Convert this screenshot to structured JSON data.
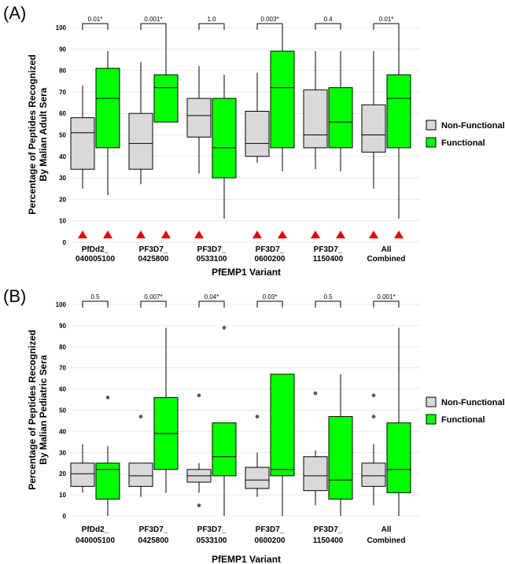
{
  "legend": {
    "items": [
      {
        "label": "Non-Functional",
        "color": "#d9d9d9"
      },
      {
        "label": "Functional",
        "color": "#00ff00"
      }
    ]
  },
  "chart_data": [
    {
      "type": "box",
      "panel_label": "(A)",
      "xlabel": "PfEMP1 Variant",
      "ylabel_lines": [
        "Percentage of Peptides Recognized",
        "By Malian Adult Sera"
      ],
      "ylim": [
        0,
        100
      ],
      "yticks": [
        0,
        10,
        20,
        30,
        40,
        50,
        60,
        70,
        80,
        90,
        100
      ],
      "categories": [
        [
          "PfDd2_",
          "040005100"
        ],
        [
          "PF3D7_",
          "0425800"
        ],
        [
          "PF3D7_",
          "0533100"
        ],
        [
          "PF3D7_",
          "0600200"
        ],
        [
          "PF3D7_",
          "1150400"
        ],
        [
          "All",
          "Combined"
        ]
      ],
      "p_values": [
        "0.01*",
        "0.001*",
        "1.0",
        "0.003*",
        "0.4",
        "0.01*"
      ],
      "series": [
        {
          "name": "Non-Functional",
          "boxes": [
            {
              "min": 25,
              "q1": 34,
              "median": 51,
              "q3": 58,
              "max": 73,
              "outliers": []
            },
            {
              "min": 27,
              "q1": 34,
              "median": 46,
              "q3": 60,
              "max": 84,
              "outliers": []
            },
            {
              "min": 32,
              "q1": 49,
              "median": 59,
              "q3": 67,
              "max": 82,
              "outliers": []
            },
            {
              "min": 37,
              "q1": 40,
              "median": 46,
              "q3": 61,
              "max": 79,
              "outliers": []
            },
            {
              "min": 34,
              "q1": 44,
              "median": 50,
              "q3": 71,
              "max": 89,
              "outliers": []
            },
            {
              "min": 25,
              "q1": 42,
              "median": 50,
              "q3": 64,
              "max": 89,
              "outliers": []
            }
          ]
        },
        {
          "name": "Functional",
          "boxes": [
            {
              "min": 22,
              "q1": 44,
              "median": 67,
              "q3": 81,
              "max": 89,
              "outliers": []
            },
            {
              "min": 56,
              "q1": 56,
              "median": 72,
              "q3": 78,
              "max": 100,
              "outliers": []
            },
            {
              "min": 11,
              "q1": 30,
              "median": 44,
              "q3": 67,
              "max": 78,
              "outliers": []
            },
            {
              "min": 33,
              "q1": 44,
              "median": 72,
              "q3": 89,
              "max": 100,
              "outliers": []
            },
            {
              "min": 33,
              "q1": 44,
              "median": 56,
              "q3": 72,
              "max": 89,
              "outliers": []
            },
            {
              "min": 11,
              "q1": 44,
              "median": 67,
              "q3": 78,
              "max": 100,
              "outliers": []
            }
          ]
        }
      ],
      "markers": [
        {
          "category": 0,
          "series": 0
        },
        {
          "category": 0,
          "series": 1
        },
        {
          "category": 1,
          "series": 0
        },
        {
          "category": 1,
          "series": 1
        },
        {
          "category": 2,
          "series": 0
        },
        {
          "category": 3,
          "series": 0
        },
        {
          "category": 3,
          "series": 1
        },
        {
          "category": 4,
          "series": 0
        },
        {
          "category": 4,
          "series": 1
        },
        {
          "category": 5,
          "series": 0
        },
        {
          "category": 5,
          "series": 1
        }
      ]
    },
    {
      "type": "box",
      "panel_label": "(B)",
      "xlabel": "PfEMP1 Variant",
      "ylabel_lines": [
        "Percentage of Peptides Recognized",
        "By Malian Pediatric Sera"
      ],
      "ylim": [
        0,
        100
      ],
      "yticks": [
        0,
        10,
        20,
        30,
        40,
        50,
        60,
        70,
        80,
        90,
        100
      ],
      "categories": [
        [
          "PfDd2_",
          "040005100"
        ],
        [
          "PF3D7_",
          "0425800"
        ],
        [
          "PF3D7_",
          "0533100"
        ],
        [
          "PF3D7_",
          "0600200"
        ],
        [
          "PF3D7_",
          "1150400"
        ],
        [
          "All",
          "Combined"
        ]
      ],
      "p_values": [
        "0.5",
        "0.007*",
        "0.04*",
        "0.03*",
        "0.5",
        "0.001*"
      ],
      "series": [
        {
          "name": "Non-Functional",
          "boxes": [
            {
              "min": 11,
              "q1": 14,
              "median": 20,
              "q3": 25,
              "max": 34,
              "outliers": []
            },
            {
              "min": 9,
              "q1": 14,
              "median": 19,
              "q3": 25,
              "max": 25,
              "outliers": [
                47
              ]
            },
            {
              "min": 11,
              "q1": 16,
              "median": 19,
              "q3": 22,
              "max": 25,
              "outliers": [
                5,
                57
              ]
            },
            {
              "min": 9,
              "q1": 13,
              "median": 17,
              "q3": 23,
              "max": 30,
              "outliers": [
                47
              ]
            },
            {
              "min": 5,
              "q1": 12,
              "median": 19,
              "q3": 28,
              "max": 31,
              "outliers": [
                58
              ]
            },
            {
              "min": 5,
              "q1": 14,
              "median": 19,
              "q3": 25,
              "max": 34,
              "outliers": [
                47,
                57
              ]
            }
          ]
        },
        {
          "name": "Functional",
          "boxes": [
            {
              "min": 0,
              "q1": 8,
              "median": 22,
              "q3": 25,
              "max": 33,
              "outliers": [
                56
              ]
            },
            {
              "min": 11,
              "q1": 22,
              "median": 39,
              "q3": 56,
              "max": 89,
              "outliers": []
            },
            {
              "min": 0,
              "q1": 19,
              "median": 28,
              "q3": 44,
              "max": 44,
              "outliers": [
                89
              ]
            },
            {
              "min": 0,
              "q1": 19,
              "median": 22,
              "q3": 67,
              "max": 67,
              "outliers": []
            },
            {
              "min": 0,
              "q1": 8,
              "median": 17,
              "q3": 47,
              "max": 67,
              "outliers": []
            },
            {
              "min": 0,
              "q1": 11,
              "median": 22,
              "q3": 44,
              "max": 89,
              "outliers": []
            }
          ]
        }
      ],
      "markers": []
    }
  ]
}
